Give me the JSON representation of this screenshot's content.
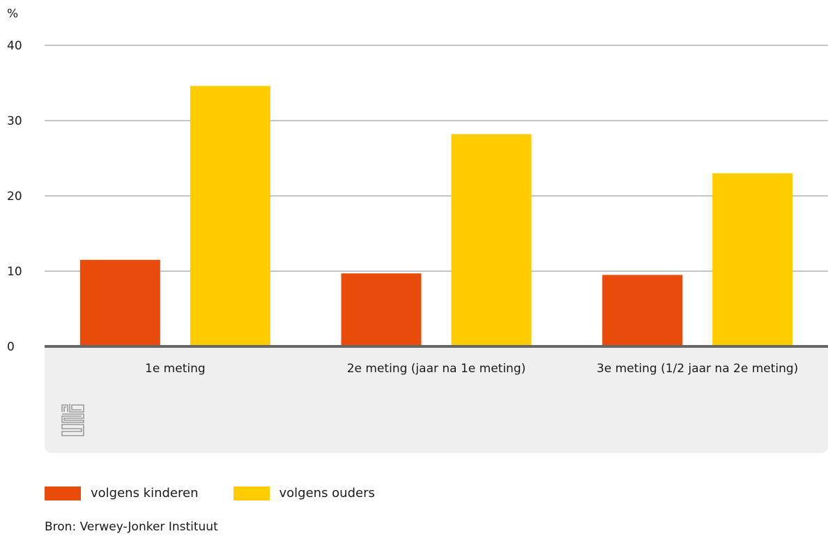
{
  "chart_data": {
    "type": "bar",
    "unit_label": "%",
    "categories": [
      "1e meting",
      "2e meting (jaar na 1e meting)",
      "3e meting (1/2 jaar na 2e meting)"
    ],
    "series": [
      {
        "name": "volgens kinderen",
        "color": "#e94c0a",
        "values": [
          11.5,
          9.7,
          9.5
        ]
      },
      {
        "name": "volgens ouders",
        "color": "#ffcc00",
        "values": [
          34.6,
          28.2,
          23.0
        ]
      }
    ],
    "ylim": [
      0,
      40
    ],
    "yticks": [
      0,
      10,
      20,
      30,
      40
    ],
    "grid": true,
    "legend_position": "bottom-left",
    "logo": "cbs-logo-icon"
  },
  "source": "Bron: Verwey-Jonker Instituut",
  "colors": {
    "axis": "#666666",
    "grid": "#8c8c8c",
    "label_band": "#efefef"
  }
}
